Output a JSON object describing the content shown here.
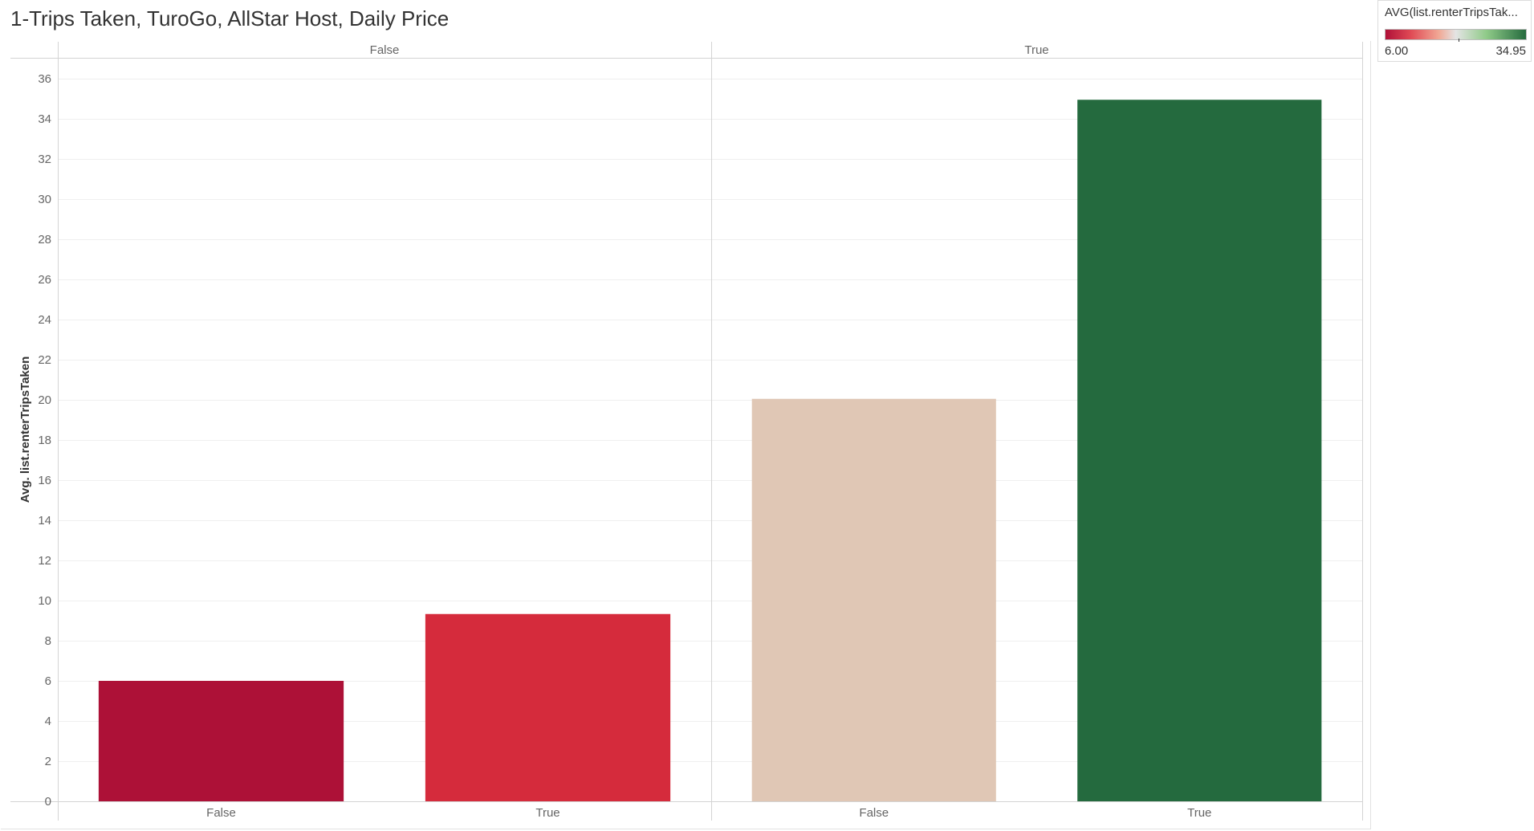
{
  "title": "1-Trips Taken, TuroGo, AllStar Host, Daily Price",
  "legend": {
    "title": "AVG(list.renterTripsTak...",
    "min_label": "6.00",
    "max_label": "34.95",
    "colors": {
      "low": "#b01038",
      "low_mid": "#e04a55",
      "mid_low": "#f1a895",
      "mid": "#e4e4e4",
      "mid_high": "#8fca88",
      "high": "#256b3e"
    }
  },
  "chart_data": {
    "type": "bar",
    "ylabel": "Avg. list.renterTripsTaken",
    "xlabel": "",
    "ylim": [
      0,
      37
    ],
    "yticks": [
      0,
      2,
      4,
      6,
      8,
      10,
      12,
      14,
      16,
      18,
      20,
      22,
      24,
      26,
      28,
      30,
      32,
      34,
      36
    ],
    "grid": true,
    "panels": [
      {
        "header": "False",
        "categories": [
          "False",
          "True"
        ],
        "values": [
          6.0,
          9.33
        ],
        "colors": [
          "#ad1137",
          "#d52b3c"
        ]
      },
      {
        "header": "True",
        "categories": [
          "False",
          "True"
        ],
        "values": [
          20.05,
          34.95
        ],
        "colors": [
          "#e0c7b5",
          "#246a3e"
        ]
      }
    ]
  }
}
